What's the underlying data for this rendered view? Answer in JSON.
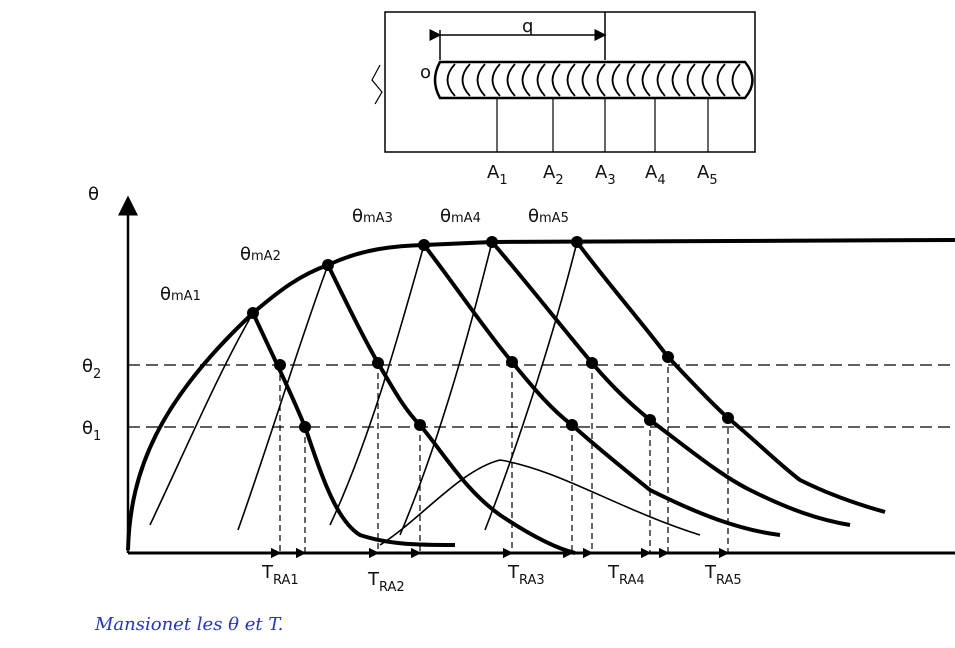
{
  "top_figure": {
    "length_label": "q",
    "origin_label": "o",
    "points": [
      {
        "main": "A",
        "sub": "1"
      },
      {
        "main": "A",
        "sub": "2"
      },
      {
        "main": "A",
        "sub": "3"
      },
      {
        "main": "A",
        "sub": "4"
      },
      {
        "main": "A",
        "sub": "5"
      }
    ]
  },
  "graph": {
    "y_axis_label": "θ",
    "levels": [
      {
        "main": "θ",
        "sub": "2"
      },
      {
        "main": "θ",
        "sub": "1"
      }
    ],
    "peaks": [
      {
        "main": "θ",
        "sub": "mA1"
      },
      {
        "main": "θ",
        "sub": "mA2"
      },
      {
        "main": "θ",
        "sub": "mA3"
      },
      {
        "main": "θ",
        "sub": "mA4"
      },
      {
        "main": "θ",
        "sub": "mA5"
      }
    ],
    "times": [
      {
        "main": "T",
        "sub": "RA1"
      },
      {
        "main": "T",
        "sub": "RA2"
      },
      {
        "main": "T",
        "sub": "RA3"
      },
      {
        "main": "T",
        "sub": "RA4"
      },
      {
        "main": "T",
        "sub": "RA5"
      }
    ]
  },
  "note": "Mansionet les θ et T."
}
